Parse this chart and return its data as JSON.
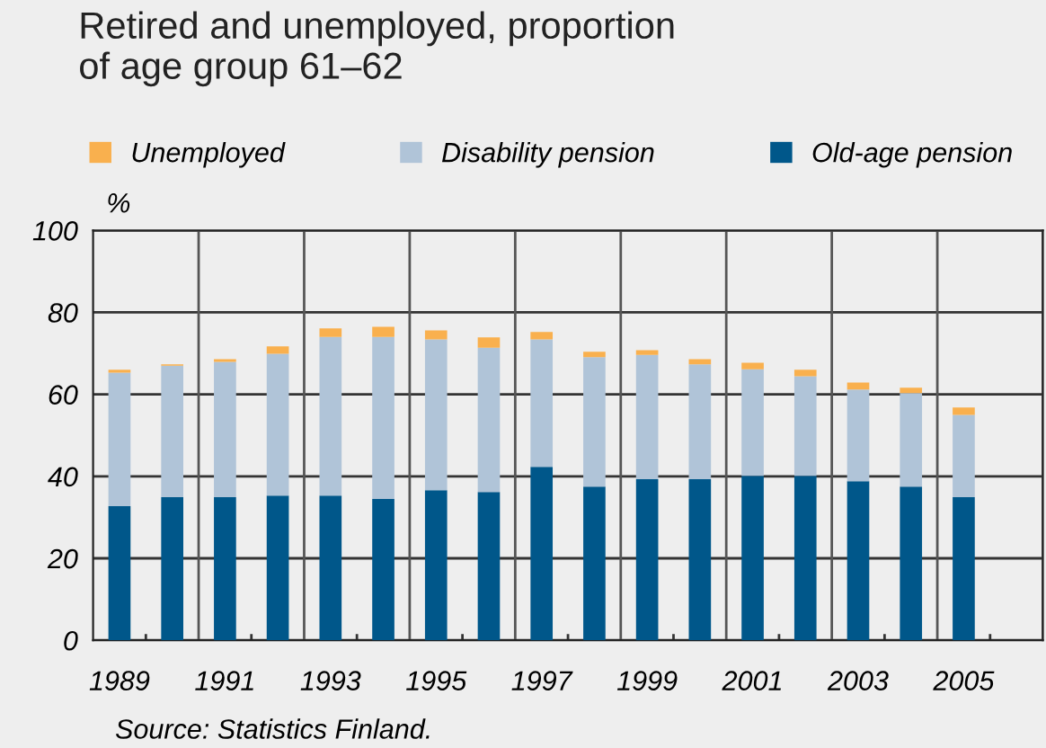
{
  "chart_data": {
    "type": "bar",
    "stacked": true,
    "title": "Retired and unemployed, proportion\nof age group 61–62",
    "ylabel": "%",
    "categories": [
      "1989",
      null,
      "1991",
      null,
      "1993",
      null,
      "1995",
      null,
      "1997",
      null,
      "1999",
      null,
      "2001",
      null,
      "2003",
      null,
      "2005",
      null
    ],
    "series": [
      {
        "name": "Old-age pension",
        "color": "#00578a",
        "values": [
          32.7,
          34.9,
          34.9,
          35.3,
          35.3,
          34.5,
          36.6,
          36.2,
          42.3,
          37.5,
          39.3,
          39.3,
          40.1,
          40.1,
          38.8,
          37.5,
          34.9,
          null
        ]
      },
      {
        "name": "Disability pension",
        "color": "#b0c4d8",
        "values": [
          32.6,
          32.1,
          33.0,
          34.6,
          38.7,
          39.5,
          36.8,
          35.2,
          31.1,
          31.6,
          30.3,
          28.0,
          26.0,
          24.3,
          22.4,
          22.8,
          20.1,
          null
        ]
      },
      {
        "name": "Unemployed",
        "color": "#f9b04e",
        "values": [
          0.7,
          0.3,
          0.7,
          1.8,
          2.1,
          2.5,
          2.2,
          2.5,
          1.8,
          1.3,
          1.2,
          1.3,
          1.6,
          1.6,
          1.7,
          1.3,
          1.8,
          null
        ]
      }
    ],
    "ylim": [
      0,
      100
    ],
    "yticks": [
      0,
      20,
      40,
      60,
      80,
      100
    ],
    "grid": true,
    "legend": "top",
    "annotations": [
      "Source: Statistics Finland."
    ]
  }
}
